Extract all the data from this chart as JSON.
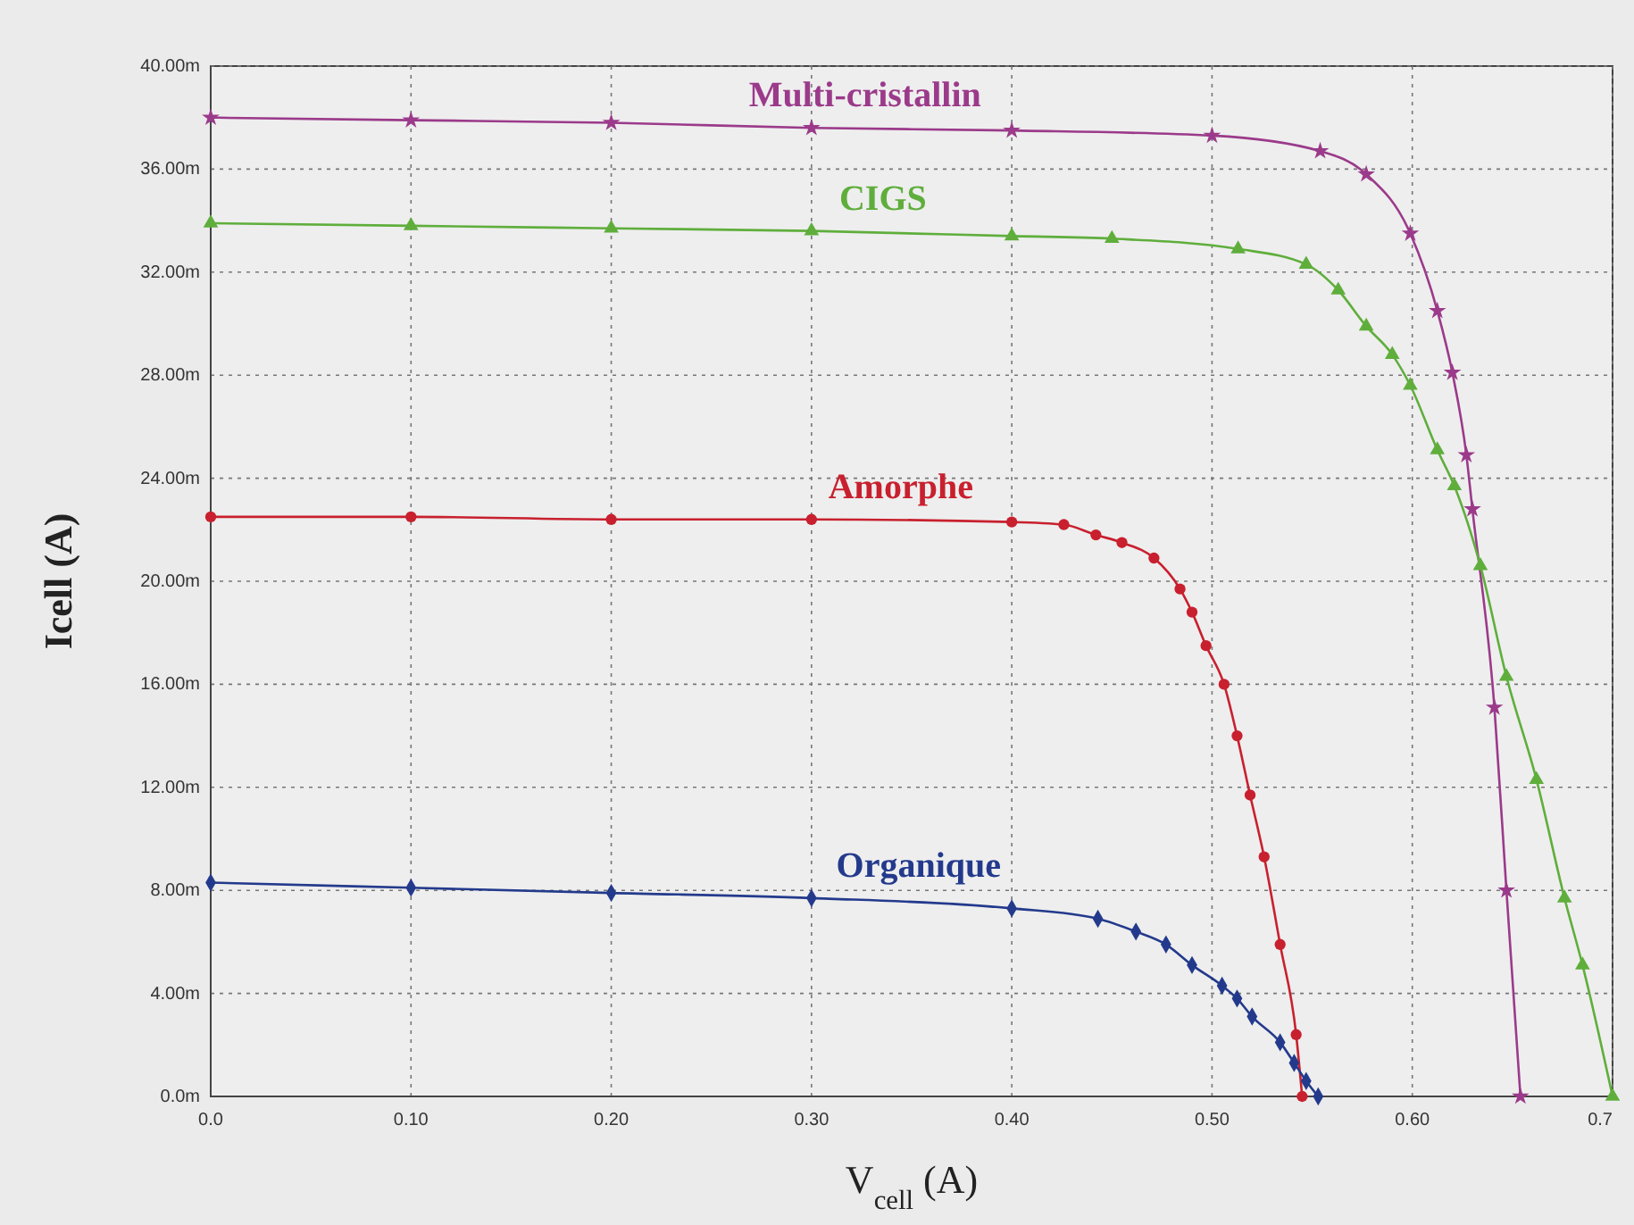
{
  "chart_data": {
    "type": "line",
    "xlabel": "V$_{cell}$ (A)",
    "ylabel": "Icell (A)",
    "xlim": [
      0,
      0.7
    ],
    "xticks": [
      {
        "value": 0,
        "label": "0.0"
      },
      {
        "value": 0.1,
        "label": "0.10"
      },
      {
        "value": 0.2,
        "label": "0.20"
      },
      {
        "value": 0.3,
        "label": "0.30"
      },
      {
        "value": 0.4,
        "label": "0.40"
      },
      {
        "value": 0.5,
        "label": "0.50"
      },
      {
        "value": 0.6,
        "label": "0.60"
      },
      {
        "value": 0.7,
        "label": "0.7"
      }
    ],
    "ylim": [
      0,
      40
    ],
    "yticks": [
      {
        "value": 0,
        "label": "0.0m"
      },
      {
        "value": 4,
        "label": "4.00m"
      },
      {
        "value": 8,
        "label": "8.00m"
      },
      {
        "value": 12,
        "label": "12.00m"
      },
      {
        "value": 16,
        "label": "16.00m"
      },
      {
        "value": 20,
        "label": "20.00m"
      },
      {
        "value": 24,
        "label": "24.00m"
      },
      {
        "value": 28,
        "label": "28.00m"
      },
      {
        "value": 32,
        "label": "32.00m"
      },
      {
        "value": 36,
        "label": "36.00m"
      },
      {
        "value": 40,
        "label": "40.00m"
      }
    ],
    "grid": true,
    "line_style": "solid",
    "series": [
      {
        "name": "Multi-cristallin",
        "color": "#9b3a8a",
        "marker": "star",
        "x": [
          0,
          0.1,
          0.2,
          0.3,
          0.4,
          0.5,
          0.554,
          0.577,
          0.599,
          0.6125,
          0.62,
          0.627,
          0.63,
          0.641,
          0.647,
          0.654
        ],
        "values": [
          38.0,
          37.9,
          37.8,
          37.6,
          37.5,
          37.3,
          36.7,
          35.8,
          33.5,
          30.5,
          28.1,
          24.9,
          22.8,
          15.1,
          8.0,
          0
        ]
      },
      {
        "name": "CIGS",
        "color": "#5fae3c",
        "marker": "triangle",
        "x": [
          0,
          0.1,
          0.2,
          0.3,
          0.4,
          0.45,
          0.513,
          0.547,
          0.563,
          0.577,
          0.59,
          0.599,
          0.6125,
          0.621,
          0.634,
          0.647,
          0.662,
          0.676,
          0.685,
          0.7
        ],
        "values": [
          33.9,
          33.8,
          33.7,
          33.6,
          33.4,
          33.3,
          32.9,
          32.3,
          31.3,
          29.9,
          28.8,
          27.6,
          25.1,
          23.7,
          20.6,
          16.3,
          12.3,
          7.7,
          5.1,
          0
        ]
      },
      {
        "name": "Amorphe",
        "color": "#c8202e",
        "marker": "circle",
        "x": [
          0,
          0.1,
          0.2,
          0.3,
          0.4,
          0.426,
          0.442,
          0.455,
          0.471,
          0.484,
          0.49,
          0.497,
          0.506,
          0.5125,
          0.519,
          0.526,
          0.534,
          0.542,
          0.545
        ],
        "values": [
          22.5,
          22.5,
          22.4,
          22.4,
          22.3,
          22.2,
          21.8,
          21.5,
          20.9,
          19.7,
          18.8,
          17.5,
          16.0,
          14.0,
          11.7,
          9.3,
          5.9,
          2.4,
          0
        ]
      },
      {
        "name": "Organique",
        "color": "#233a8c",
        "marker": "diamond",
        "x": [
          0,
          0.1,
          0.2,
          0.3,
          0.4,
          0.443,
          0.462,
          0.477,
          0.49,
          0.505,
          0.5125,
          0.52,
          0.534,
          0.541,
          0.547,
          0.553
        ],
        "values": [
          8.3,
          8.1,
          7.9,
          7.7,
          7.3,
          6.9,
          6.4,
          5.9,
          5.1,
          4.3,
          3.8,
          3.1,
          2.1,
          1.3,
          0.6,
          0
        ]
      }
    ]
  }
}
